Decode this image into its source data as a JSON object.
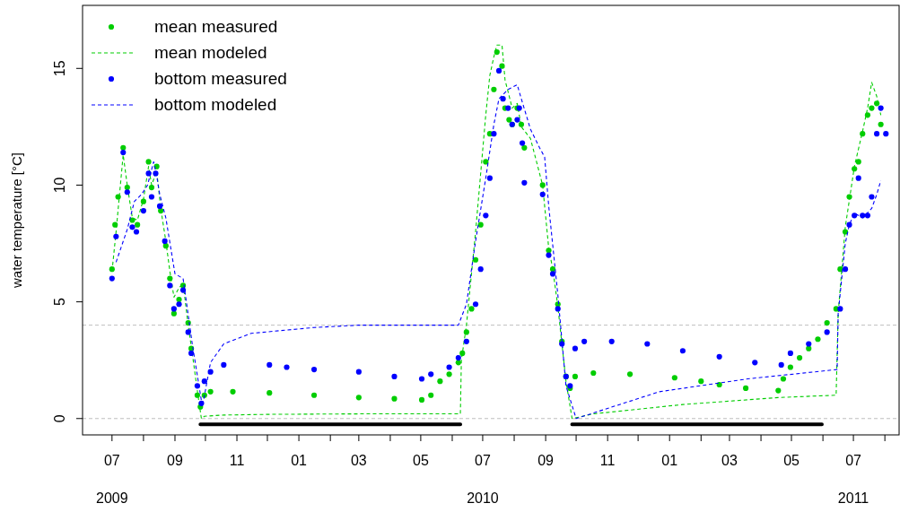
{
  "chart_data": {
    "type": "line",
    "ylabel": "water temperature [°C]",
    "xlim": [
      "2009-06-02",
      "2011-08-15"
    ],
    "ylim": [
      -0.7,
      17.7
    ],
    "yticks": [
      0,
      5,
      10,
      15
    ],
    "annotations": [
      "2009",
      "2010",
      "2011"
    ],
    "xticks": [
      {
        "value": "2009-07-01",
        "label": "07"
      },
      {
        "value": "2009-08-01",
        "label": null
      },
      {
        "value": "2009-09-01",
        "label": "09"
      },
      {
        "value": "2009-10-01",
        "label": null
      },
      {
        "value": "2009-11-01",
        "label": "11"
      },
      {
        "value": "2009-12-01",
        "label": null
      },
      {
        "value": "2010-01-01",
        "label": "01"
      },
      {
        "value": "2010-02-01",
        "label": null
      },
      {
        "value": "2010-03-01",
        "label": "03"
      },
      {
        "value": "2010-04-01",
        "label": null
      },
      {
        "value": "2010-05-01",
        "label": "05"
      },
      {
        "value": "2010-06-01",
        "label": null
      },
      {
        "value": "2010-07-01",
        "label": "07"
      },
      {
        "value": "2010-08-01",
        "label": null
      },
      {
        "value": "2010-09-01",
        "label": "09"
      },
      {
        "value": "2010-10-01",
        "label": null
      },
      {
        "value": "2010-11-01",
        "label": "11"
      },
      {
        "value": "2010-12-01",
        "label": null
      },
      {
        "value": "2011-01-01",
        "label": "01"
      },
      {
        "value": "2011-02-01",
        "label": null
      },
      {
        "value": "2011-03-01",
        "label": "03"
      },
      {
        "value": "2011-04-01",
        "label": null
      },
      {
        "value": "2011-05-01",
        "label": "05"
      },
      {
        "value": "2011-06-01",
        "label": null
      },
      {
        "value": "2011-07-01",
        "label": "07"
      },
      {
        "value": "2011-08-01",
        "label": null
      }
    ],
    "grid": false,
    "legend": "top left",
    "ref_lines": [
      {
        "axis": "y",
        "value": 4,
        "color": "#bebebe",
        "line_style": "dashed"
      },
      {
        "axis": "y",
        "value": 0,
        "color": "#bebebe",
        "line_style": "dashed"
      }
    ],
    "series": [
      {
        "name": "mean measured",
        "type": "scatter",
        "marker": "circle",
        "color": "#00cd00",
        "x": [
          "2009-07-01",
          "2009-07-04",
          "2009-07-07",
          "2009-07-12",
          "2009-07-16",
          "2009-07-21",
          "2009-07-26",
          "2009-08-01",
          "2009-08-06",
          "2009-08-09",
          "2009-08-14",
          "2009-08-18",
          "2009-08-23",
          "2009-08-27",
          "2009-08-31",
          "2009-09-05",
          "2009-09-09",
          "2009-09-14",
          "2009-09-17",
          "2009-09-23",
          "2009-09-26",
          "2009-09-30",
          "2009-10-06",
          "2009-10-28",
          "2009-12-03",
          "2010-01-16",
          "2010-03-01",
          "2010-04-05",
          "2010-05-02",
          "2010-05-11",
          "2010-05-20",
          "2010-05-29",
          "2010-06-07",
          "2010-06-11",
          "2010-06-15",
          "2010-06-20",
          "2010-06-24",
          "2010-06-29",
          "2010-07-04",
          "2010-07-08",
          "2010-07-12",
          "2010-07-15",
          "2010-07-20",
          "2010-07-23",
          "2010-07-27",
          "2010-07-30",
          "2010-08-04",
          "2010-08-08",
          "2010-08-11",
          "2010-08-29",
          "2010-09-04",
          "2010-09-08",
          "2010-09-13",
          "2010-09-17",
          "2010-09-21",
          "2010-09-25",
          "2010-09-30",
          "2010-10-18",
          "2010-11-23",
          "2011-01-06",
          "2011-02-01",
          "2011-02-19",
          "2011-03-17",
          "2011-04-18",
          "2011-04-23",
          "2011-04-30",
          "2011-05-09",
          "2011-05-18",
          "2011-05-27",
          "2011-06-05",
          "2011-06-14",
          "2011-06-18",
          "2011-06-23",
          "2011-06-27",
          "2011-07-02",
          "2011-07-06",
          "2011-07-10",
          "2011-07-15",
          "2011-07-19",
          "2011-07-24",
          "2011-07-28"
        ],
        "values": [
          6.4,
          8.3,
          9.5,
          11.6,
          9.9,
          8.5,
          8.3,
          9.3,
          11.0,
          9.9,
          10.8,
          8.9,
          7.4,
          6.0,
          4.5,
          5.1,
          5.7,
          4.1,
          3.0,
          1.0,
          0.5,
          1.0,
          1.15,
          1.15,
          1.1,
          1.0,
          0.9,
          0.85,
          0.8,
          1.0,
          1.6,
          1.9,
          2.4,
          2.8,
          3.7,
          4.7,
          6.8,
          8.3,
          11.0,
          12.2,
          14.1,
          15.7,
          15.1,
          13.3,
          12.8,
          12.6,
          13.3,
          12.6,
          11.6,
          10.0,
          7.2,
          6.4,
          4.9,
          3.3,
          1.8,
          1.3,
          1.8,
          1.95,
          1.9,
          1.75,
          1.6,
          1.45,
          1.3,
          1.2,
          1.7,
          2.2,
          2.6,
          3.0,
          3.4,
          4.1,
          4.7,
          6.4,
          8.0,
          9.5,
          10.7,
          11.0,
          12.2,
          13.0,
          13.3,
          13.5,
          12.6
        ]
      },
      {
        "name": "mean modeled",
        "line_style": "dashed",
        "color": "#00cd00",
        "x": [
          "2009-07-01",
          "2009-07-05",
          "2009-07-12",
          "2009-07-16",
          "2009-07-21",
          "2009-07-26",
          "2009-08-01",
          "2009-08-06",
          "2009-08-09",
          "2009-08-14",
          "2009-08-18",
          "2009-08-23",
          "2009-08-27",
          "2009-08-31",
          "2009-09-05",
          "2009-09-09",
          "2009-09-14",
          "2009-09-18",
          "2009-09-23",
          "2009-09-27",
          "2009-09-30",
          "2009-10-19",
          "2009-12-03",
          "2010-03-01",
          "2010-06-09",
          "2010-06-10",
          "2010-06-15",
          "2010-06-24",
          "2010-07-04",
          "2010-07-08",
          "2010-07-12",
          "2010-07-15",
          "2010-07-20",
          "2010-07-23",
          "2010-07-26",
          "2010-07-30",
          "2010-08-04",
          "2010-08-08",
          "2010-08-17",
          "2010-08-29",
          "2010-09-04",
          "2010-09-08",
          "2010-09-13",
          "2010-09-17",
          "2010-09-21",
          "2010-09-27",
          "2010-10-18",
          "2011-01-14",
          "2011-04-18",
          "2011-06-14",
          "2011-06-16",
          "2011-06-23",
          "2011-07-02",
          "2011-07-10",
          "2011-07-15",
          "2011-07-19",
          "2011-07-24",
          "2011-07-28"
        ],
        "values": [
          6.3,
          8.0,
          11.3,
          10.0,
          8.6,
          8.5,
          9.4,
          10.8,
          10.0,
          10.6,
          9.0,
          7.6,
          6.3,
          5.2,
          5.6,
          5.8,
          4.0,
          2.8,
          1.2,
          0.0,
          0.1,
          0.15,
          0.18,
          0.2,
          0.2,
          2.5,
          4.0,
          8.0,
          13.0,
          14.7,
          15.5,
          16.0,
          16.0,
          14.5,
          14.0,
          13.3,
          13.5,
          12.5,
          12.0,
          10.0,
          7.3,
          6.4,
          4.8,
          3.2,
          1.6,
          0.0,
          0.2,
          0.6,
          0.9,
          1.0,
          4.5,
          8.2,
          10.8,
          12.3,
          13.3,
          14.4,
          13.8,
          13.0
        ]
      },
      {
        "name": "bottom measured",
        "type": "scatter",
        "marker": "circle",
        "color": "#0000ff",
        "x": [
          "2009-07-01",
          "2009-07-05",
          "2009-07-12",
          "2009-07-16",
          "2009-07-21",
          "2009-07-25",
          "2009-08-01",
          "2009-08-06",
          "2009-08-09",
          "2009-08-13",
          "2009-08-17",
          "2009-08-22",
          "2009-08-27",
          "2009-08-31",
          "2009-09-05",
          "2009-09-09",
          "2009-09-14",
          "2009-09-17",
          "2009-09-23",
          "2009-09-27",
          "2009-09-30",
          "2009-10-06",
          "2009-10-19",
          "2009-12-03",
          "2009-12-20",
          "2010-01-16",
          "2010-03-01",
          "2010-04-05",
          "2010-05-02",
          "2010-05-11",
          "2010-05-29",
          "2010-06-07",
          "2010-06-15",
          "2010-06-24",
          "2010-06-29",
          "2010-07-04",
          "2010-07-08",
          "2010-07-12",
          "2010-07-17",
          "2010-07-21",
          "2010-07-26",
          "2010-07-30",
          "2010-08-04",
          "2010-08-06",
          "2010-08-09",
          "2010-08-11",
          "2010-08-29",
          "2010-09-04",
          "2010-09-08",
          "2010-09-13",
          "2010-09-17",
          "2010-09-21",
          "2010-09-25",
          "2010-09-30",
          "2010-10-09",
          "2010-11-05",
          "2010-12-10",
          "2011-01-14",
          "2011-02-19",
          "2011-03-26",
          "2011-04-21",
          "2011-04-30",
          "2011-05-18",
          "2011-06-05",
          "2011-06-18",
          "2011-06-23",
          "2011-06-27",
          "2011-07-02",
          "2011-07-06",
          "2011-07-10",
          "2011-07-15",
          "2011-07-19",
          "2011-07-24",
          "2011-07-28",
          "2011-08-02"
        ],
        "values": [
          6.0,
          7.8,
          11.4,
          9.7,
          8.2,
          8.0,
          8.9,
          10.5,
          9.5,
          10.5,
          9.1,
          7.6,
          5.7,
          4.7,
          4.9,
          5.5,
          3.7,
          2.8,
          1.4,
          0.65,
          1.6,
          2.0,
          2.3,
          2.3,
          2.2,
          2.1,
          2.0,
          1.8,
          1.7,
          1.9,
          2.2,
          2.6,
          3.3,
          4.9,
          6.4,
          8.7,
          10.3,
          12.2,
          14.9,
          13.7,
          13.3,
          12.6,
          12.8,
          13.3,
          11.8,
          10.1,
          9.6,
          7.0,
          6.2,
          4.7,
          3.2,
          1.8,
          1.4,
          3.0,
          3.3,
          3.3,
          3.2,
          2.9,
          2.65,
          2.4,
          2.3,
          2.8,
          3.2,
          3.7,
          4.7,
          6.4,
          8.3,
          8.7,
          10.3,
          8.7,
          8.7,
          9.5,
          12.2,
          13.3,
          12.2
        ]
      },
      {
        "name": "bottom modeled",
        "line_style": "dashed",
        "color": "#0000ff",
        "x": [
          "2009-07-05",
          "2009-07-16",
          "2009-07-23",
          "2009-07-30",
          "2009-08-05",
          "2009-08-11",
          "2009-08-14",
          "2009-08-17",
          "2009-08-23",
          "2009-09-01",
          "2009-09-09",
          "2009-09-18",
          "2009-09-28",
          "2009-10-06",
          "2009-10-19",
          "2009-11-15",
          "2010-01-16",
          "2010-03-01",
          "2010-06-07",
          "2010-06-15",
          "2010-06-24",
          "2010-07-04",
          "2010-07-12",
          "2010-07-17",
          "2010-07-26",
          "2010-08-04",
          "2010-08-08",
          "2010-08-17",
          "2010-08-26",
          "2010-08-31",
          "2010-09-04",
          "2010-09-13",
          "2010-09-21",
          "2010-10-01",
          "2010-12-22",
          "2011-03-19",
          "2011-06-15",
          "2011-06-16",
          "2011-06-23",
          "2011-06-27",
          "2011-07-02",
          "2011-07-10",
          "2011-07-19",
          "2011-07-24",
          "2011-07-28"
        ],
        "values": [
          6.7,
          8.1,
          9.3,
          9.6,
          10.0,
          11.0,
          10.4,
          9.6,
          8.6,
          6.2,
          6.0,
          3.2,
          0.5,
          2.4,
          3.2,
          3.65,
          3.9,
          4.0,
          4.0,
          4.9,
          7.6,
          10.3,
          12.6,
          13.7,
          14.1,
          14.3,
          13.7,
          12.4,
          11.6,
          11.2,
          9.1,
          5.3,
          1.4,
          0.0,
          1.15,
          1.7,
          2.1,
          4.5,
          7.5,
          8.3,
          8.8,
          8.6,
          9.0,
          9.6,
          10.2
        ]
      },
      {
        "line_style": "solid",
        "color": "#000000",
        "x": [
          "2009-09-26",
          "2010-06-09",
          "2010-06-10",
          "2010-09-27",
          "2011-05-31"
        ],
        "values": [
          -0.25,
          -0.25,
          null,
          -0.25,
          -0.25
        ]
      }
    ]
  }
}
